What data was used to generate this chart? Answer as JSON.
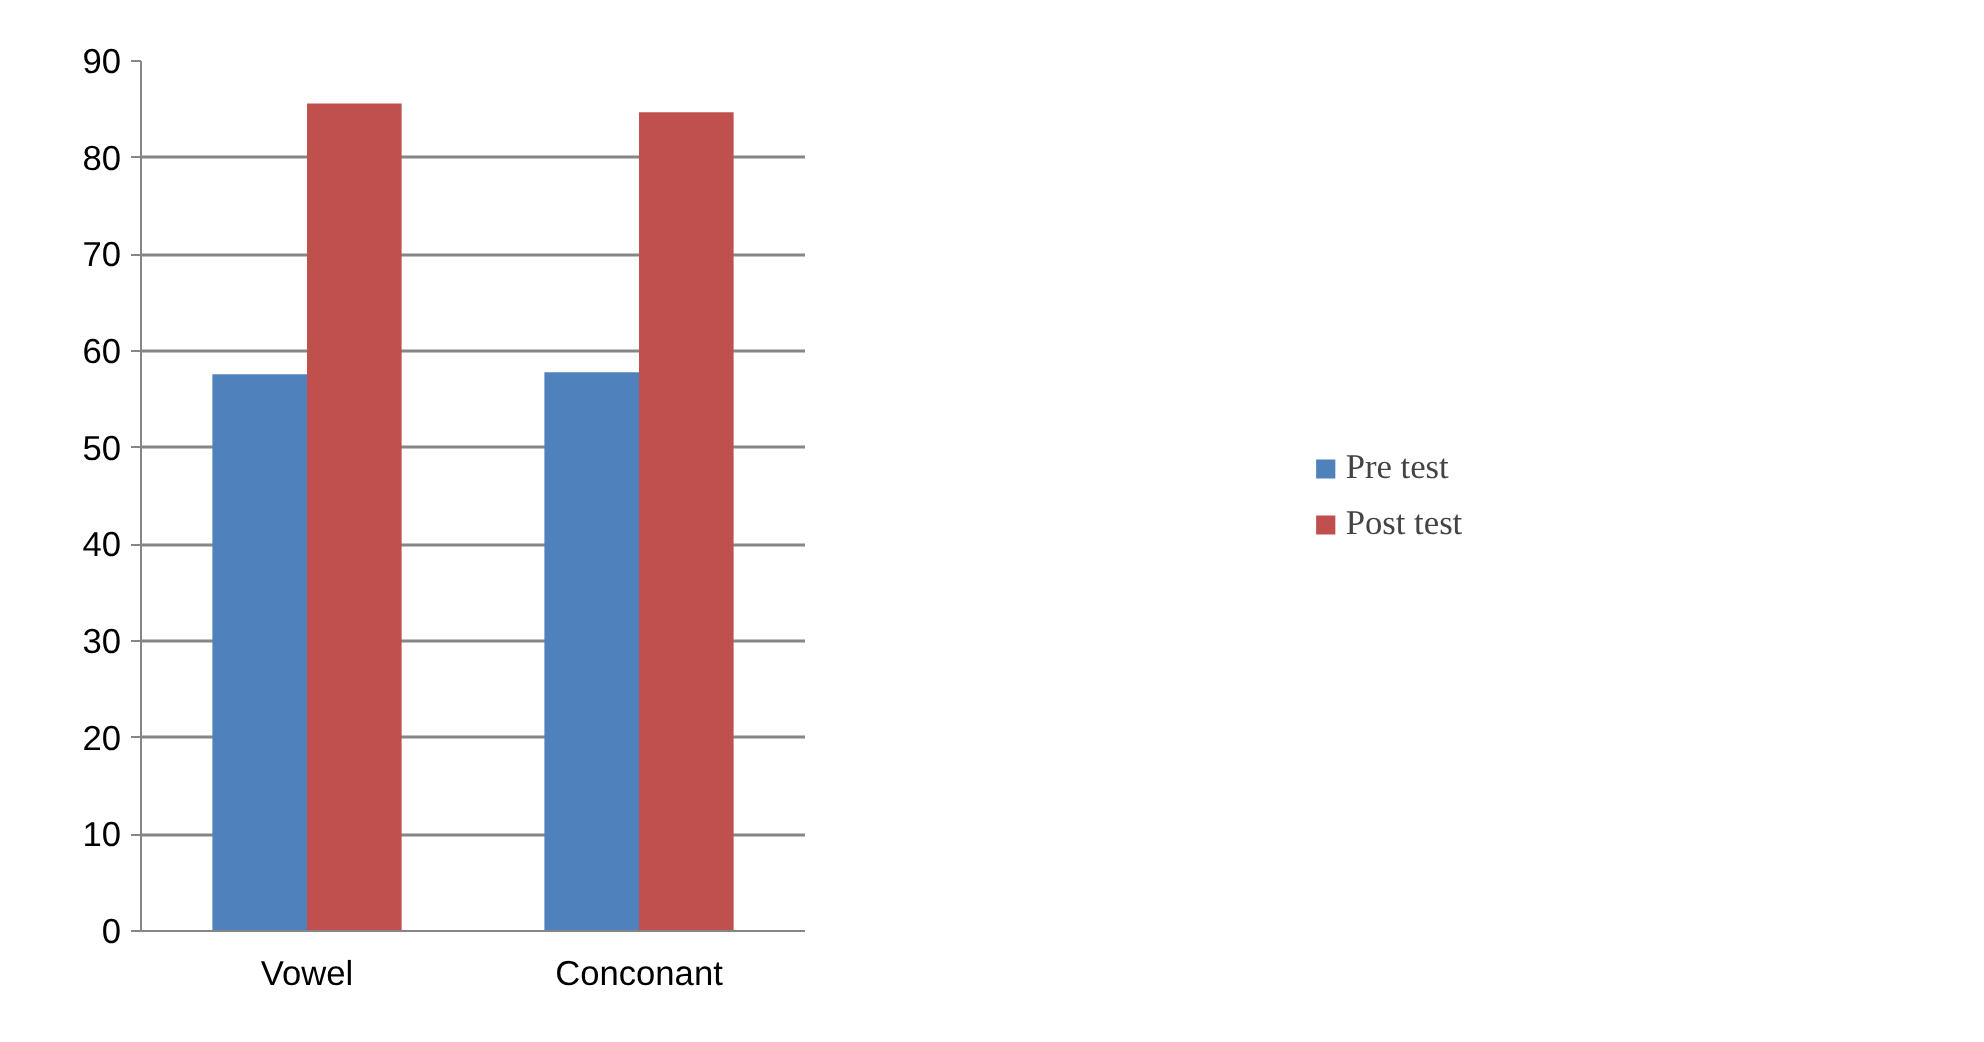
{
  "chart_data": {
    "type": "bar",
    "categories": [
      "Vowel",
      "Conconant"
    ],
    "series": [
      {
        "name": "Pre test",
        "color": "#4f81bd",
        "values": [
          57.6,
          57.8
        ]
      },
      {
        "name": "Post test",
        "color": "#c0504d",
        "values": [
          85.6,
          84.7
        ]
      }
    ],
    "ylim": [
      0,
      90
    ],
    "yticks": [
      0,
      10,
      20,
      30,
      40,
      50,
      60,
      70,
      80,
      90
    ],
    "grid": "y",
    "legend": "right"
  }
}
